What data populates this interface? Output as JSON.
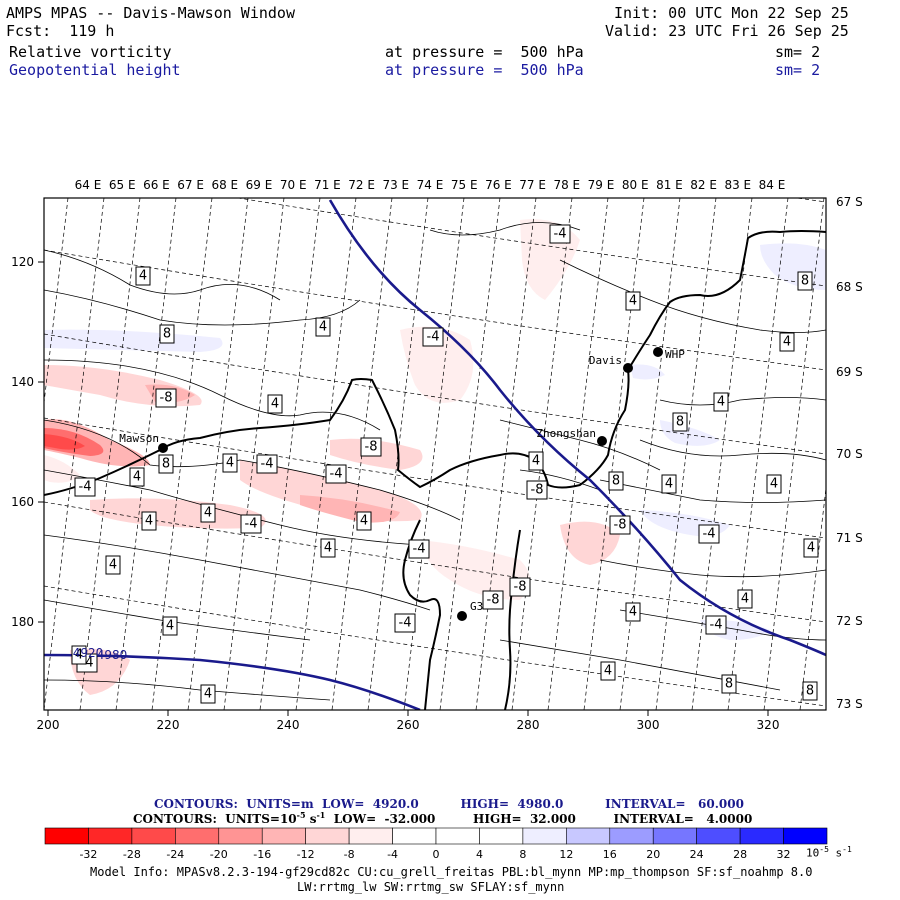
{
  "header": {
    "title": "AMPS MPAS -- Davis-Mawson Window",
    "forecast": "Fcst:  119 h",
    "init": "Init: 00 UTC Mon 22 Sep 25",
    "valid": "Valid: 23 UTC Fri 26 Sep 25",
    "field1_name": "Relative vorticity",
    "field1_level": "at pressure =  500 hPa",
    "field1_sm": "sm= 2",
    "field2_name": "Geopotential height",
    "field2_level": "at pressure =  500 hPa",
    "field2_sm": "sm= 2"
  },
  "map": {
    "lon_labels": [
      "64 E",
      "65 E",
      "66 E",
      "67 E",
      "68 E",
      "69 E",
      "70 E",
      "71 E",
      "72 E",
      "73 E",
      "74 E",
      "75 E",
      "76 E",
      "77 E",
      "78 E",
      "79 E",
      "80 E",
      "81 E",
      "82 E",
      "83 E",
      "84 E"
    ],
    "lat_labels": [
      "67 S",
      "68 S",
      "69 S",
      "70 S",
      "71 S",
      "72 S",
      "73 S"
    ],
    "x_ticks": [
      "200",
      "220",
      "240",
      "260",
      "280",
      "300",
      "320"
    ],
    "y_ticks": [
      "120",
      "140",
      "160",
      "180"
    ],
    "stations": [
      {
        "name": "Mawson"
      },
      {
        "name": "Davis"
      },
      {
        "name": "WHP"
      },
      {
        "name": "Zhongshan"
      },
      {
        "name": "G3"
      }
    ],
    "height_contour_labels": [
      "4920",
      "4980"
    ],
    "vorticity_contour_labels": [
      "4",
      "4",
      "4",
      "4",
      "4",
      "4",
      "4",
      "4",
      "4",
      "4",
      "4",
      "4",
      "4",
      "4",
      "4",
      "4",
      "4",
      "4",
      "4",
      "8",
      "8",
      "8",
      "8",
      "8",
      "8",
      "8",
      "-4",
      "-4",
      "-4",
      "-4",
      "-4",
      "-4",
      "-4",
      "-4",
      "-4",
      "-4",
      "-4",
      "-8",
      "-8",
      "-8",
      "-8",
      "-8",
      "-8"
    ]
  },
  "footer": {
    "contours_height": "CONTOURS:  UNITS=m  LOW=  4920.0          HIGH=  4980.0          INTERVAL=   60.000",
    "contours_vort": "CONTOURS:  UNITS=10",
    "contours_vort_exp": "-5",
    "contours_vort_rest": " s",
    "contours_vort_exp2": "-1",
    "contours_vort_tail": "  LOW=  -32.000         HIGH=  32.000         INTERVAL=   4.0000",
    "colorbar_labels": [
      "-32",
      "-28",
      "-24",
      "-20",
      "-16",
      "-12",
      "-8",
      "-4",
      "0",
      "4",
      "8",
      "12",
      "16",
      "20",
      "24",
      "28",
      "32"
    ],
    "colorbar_colors": [
      "#ff0000",
      "#ff2727",
      "#ff4a4a",
      "#ff6e6e",
      "#ff9494",
      "#ffb5b5",
      "#ffd6d6",
      "#ffeeee",
      "#ffffff",
      "#ffffff",
      "#eeeeff",
      "#c8c8ff",
      "#9c9cff",
      "#7676ff",
      "#4e4eff",
      "#2a2aff",
      "#0000ff"
    ],
    "colorbar_unit": "10",
    "colorbar_unit_exp": "-5",
    "colorbar_unit_s": " s",
    "colorbar_unit_exp2": "-1",
    "model_info_1": "Model Info: MPASv8.2.3-194-gf29cd82c CU:cu_grell_freitas PBL:bl_mynn MP:mp_thompson SF:sf_noahmp 8.0",
    "model_info_2": "LW:rrtmg_lw SW:rrtmg_sw SFLAY:sf_mynn"
  }
}
